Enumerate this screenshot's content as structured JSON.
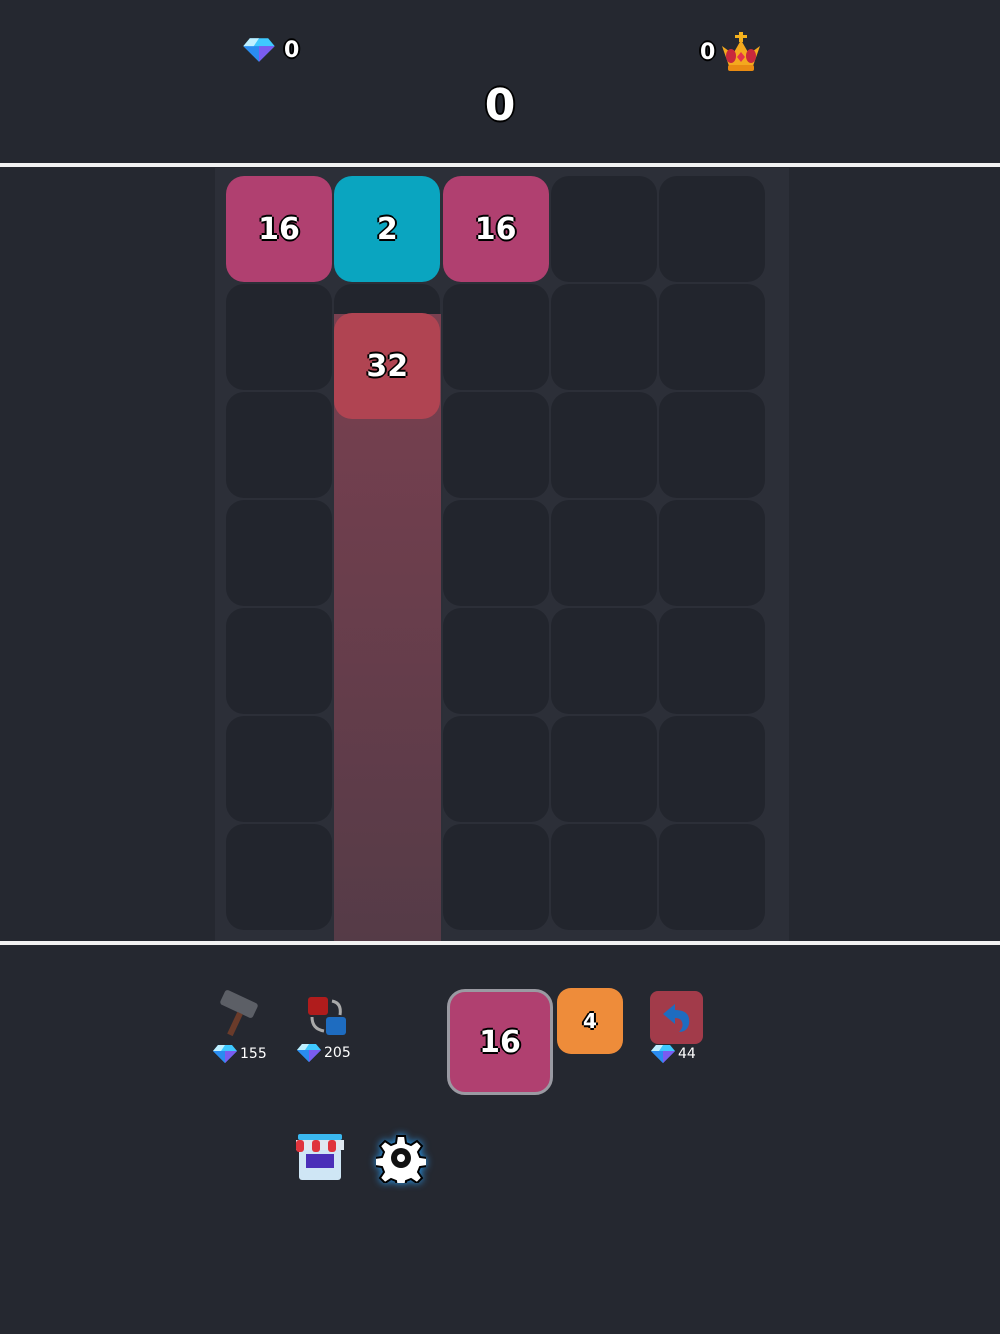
{
  "header": {
    "gems": "0",
    "score": "0",
    "best": "0"
  },
  "board": {
    "columns": 5,
    "rows": 7,
    "tiles": [
      {
        "value": "16",
        "col": 0,
        "row": 0,
        "color": "#b04070"
      },
      {
        "value": "2",
        "col": 1,
        "row": 0,
        "color": "#0aa5c0"
      },
      {
        "value": "16",
        "col": 2,
        "row": 0,
        "color": "#b04070"
      }
    ],
    "falling_tile": {
      "value": "32",
      "col": 1,
      "color": "#b04452"
    },
    "highlight_column": 1
  },
  "controls": {
    "hammer": {
      "icon": "hammer-icon",
      "cost": "155"
    },
    "swap": {
      "icon": "swap-icon",
      "cost": "205"
    },
    "current_tile": {
      "value": "16",
      "color": "#b04070"
    },
    "next_tile": {
      "value": "4",
      "color": "#ee8c3a"
    },
    "undo": {
      "icon": "undo-icon",
      "cost": "44"
    },
    "shop": {
      "icon": "shop-icon"
    },
    "settings": {
      "icon": "gear-icon"
    }
  }
}
